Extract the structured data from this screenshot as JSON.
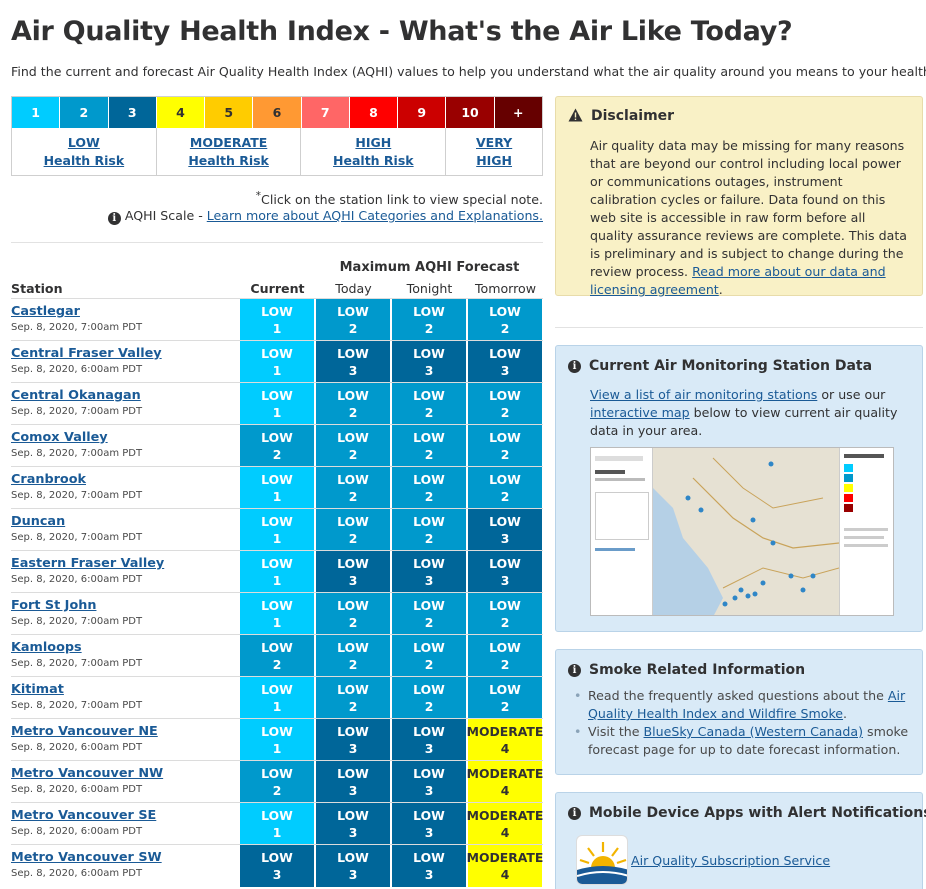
{
  "page": {
    "title": "Air Quality Health Index - What's the Air Like Today?",
    "intro": "Find the current and forecast Air Quality Health Index (AQHI) values to help you understand what the air quality around you means to your health."
  },
  "scale": {
    "cells": [
      {
        "label": "1",
        "bg": "#00ccff",
        "fg": "#ffffff"
      },
      {
        "label": "2",
        "bg": "#0099cc",
        "fg": "#ffffff"
      },
      {
        "label": "3",
        "bg": "#006699",
        "fg": "#ffffff"
      },
      {
        "label": "4",
        "bg": "#ffff00",
        "fg": "#313132"
      },
      {
        "label": "5",
        "bg": "#ffcc00",
        "fg": "#313132"
      },
      {
        "label": "6",
        "bg": "#ff9933",
        "fg": "#313132"
      },
      {
        "label": "7",
        "bg": "#ff6666",
        "fg": "#ffffff"
      },
      {
        "label": "8",
        "bg": "#ff0000",
        "fg": "#ffffff"
      },
      {
        "label": "9",
        "bg": "#cc0000",
        "fg": "#ffffff"
      },
      {
        "label": "10",
        "bg": "#990000",
        "fg": "#ffffff"
      },
      {
        "label": "+",
        "bg": "#660000",
        "fg": "#ffffff"
      }
    ],
    "risks": [
      {
        "line1": "LOW",
        "line2": "Health Risk",
        "span": 3
      },
      {
        "line1": "MODERATE",
        "line2": "Health Risk",
        "span": 3
      },
      {
        "line1": "HIGH",
        "line2": "Health Risk",
        "span": 3
      },
      {
        "line1": "VERY",
        "line2": "HIGH",
        "span": 2
      }
    ]
  },
  "notes": {
    "click_note": "Click on the station link to view special note.",
    "scale_prefix": "AQHI Scale - ",
    "scale_link": "Learn more about AQHI Categories and Explanations."
  },
  "table": {
    "forecast_header": "Maximum AQHI Forecast",
    "col_station": "Station",
    "col_current": "Current",
    "col_today": "Today",
    "col_tonight": "Tonight",
    "col_tomorrow": "Tomorrow",
    "rows": [
      {
        "name": "Castlegar",
        "date": "Sep. 8, 2020, 7:00am PDT",
        "values": [
          1,
          2,
          2,
          2
        ]
      },
      {
        "name": "Central Fraser Valley",
        "date": "Sep. 8, 2020, 6:00am PDT",
        "values": [
          1,
          3,
          3,
          3
        ]
      },
      {
        "name": "Central Okanagan",
        "date": "Sep. 8, 2020, 7:00am PDT",
        "values": [
          1,
          2,
          2,
          2
        ]
      },
      {
        "name": "Comox Valley",
        "date": "Sep. 8, 2020, 7:00am PDT",
        "values": [
          2,
          2,
          2,
          2
        ]
      },
      {
        "name": "Cranbrook",
        "date": "Sep. 8, 2020, 7:00am PDT",
        "values": [
          1,
          2,
          2,
          2
        ]
      },
      {
        "name": "Duncan",
        "date": "Sep. 8, 2020, 7:00am PDT",
        "values": [
          1,
          2,
          2,
          3
        ]
      },
      {
        "name": "Eastern Fraser Valley",
        "date": "Sep. 8, 2020, 6:00am PDT",
        "values": [
          1,
          3,
          3,
          3
        ]
      },
      {
        "name": "Fort St John",
        "date": "Sep. 8, 2020, 7:00am PDT",
        "values": [
          1,
          2,
          2,
          2
        ]
      },
      {
        "name": "Kamloops",
        "date": "Sep. 8, 2020, 7:00am PDT",
        "values": [
          2,
          2,
          2,
          2
        ]
      },
      {
        "name": "Kitimat",
        "date": "Sep. 8, 2020, 7:00am PDT",
        "values": [
          1,
          2,
          2,
          2
        ]
      },
      {
        "name": "Metro Vancouver NE",
        "date": "Sep. 8, 2020, 6:00am PDT",
        "values": [
          1,
          3,
          3,
          4
        ]
      },
      {
        "name": "Metro Vancouver NW",
        "date": "Sep. 8, 2020, 6:00am PDT",
        "values": [
          2,
          3,
          3,
          4
        ]
      },
      {
        "name": "Metro Vancouver SE",
        "date": "Sep. 8, 2020, 6:00am PDT",
        "values": [
          1,
          3,
          3,
          4
        ]
      },
      {
        "name": "Metro Vancouver SW",
        "date": "Sep. 8, 2020, 6:00am PDT",
        "values": [
          3,
          3,
          3,
          4
        ]
      }
    ]
  },
  "levels": {
    "low_label": "LOW",
    "moderate_label": "MODERATE"
  },
  "disclaimer": {
    "title": "Disclaimer",
    "text": "Air quality data may be missing for many reasons that are beyond our control including local power or communications outages, instrument calibration cycles or failure. Data found on this web site is accessible in raw form before all quality assurance reviews are complete. This data is preliminary and is subject to change during the review process. ",
    "link": "Read more about our data and licensing agreement",
    "link_suffix": "."
  },
  "monitoring": {
    "title": "Current Air Monitoring Station Data",
    "link1": "View a list of air monitoring stations",
    "mid": " or use our ",
    "link2": "interactive map",
    "suffix": " below to view current air quality data in your area."
  },
  "smoke": {
    "title": "Smoke Related Information",
    "b1_prefix": "Read the frequently asked questions about the ",
    "b1_link": "Air Quality Health Index and Wildfire Smoke",
    "b1_suffix": ".",
    "b2_prefix": "Visit the ",
    "b2_link": "BlueSky Canada (Western Canada)",
    "b2_suffix": " smoke forecast page for up to date forecast information."
  },
  "mobile": {
    "title": "Mobile Device Apps with Alert Notifications",
    "link": "Air Quality Subscription Service"
  },
  "colors": {
    "aqhi_1": "#00ccff",
    "aqhi_2": "#0099cc",
    "aqhi_3": "#006699",
    "aqhi_4": "#ffff00"
  }
}
